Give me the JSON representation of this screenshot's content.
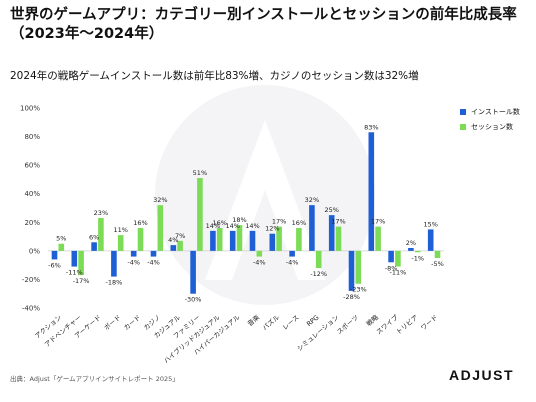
{
  "header": {
    "title": "世界のゲームアプリ：カテゴリー別インストールとセッションの前年比成長率（2023年〜2024年）",
    "subtitle": "2024年の戦略ゲームインストール数は前年比83%増、カジノのセッション数は32%増"
  },
  "footer": {
    "source": "出典：Adjust「ゲームアプリインサイトレポート 2025」",
    "logo_text": "ADJUST"
  },
  "colors": {
    "installs": "#1f5fd6",
    "sessions": "#7ddc56"
  },
  "chart_data": {
    "type": "bar",
    "title": "世界のゲームアプリ：カテゴリー別インストールとセッションの前年比成長率（2023年〜2024年）",
    "subtitle": "2024年の戦略ゲームインストール数は前年比83%増、カジノのセッション数は32%増",
    "categories": [
      "アクション",
      "アドベンチャー",
      "アーケード",
      "ボード",
      "カード",
      "カジノ",
      "カジュアル",
      "ファミリー",
      "ハイブリッドカジュアル",
      "ハイパーカジュアル",
      "音楽",
      "パズル",
      "レース",
      "RPG",
      "シミュレーション",
      "スポーツ",
      "戦略",
      "スワイプ",
      "トリビア",
      "ワード"
    ],
    "series": [
      {
        "name": "インストール数",
        "values": [
          -6,
          -11,
          6,
          -18,
          -4,
          -4,
          4,
          -30,
          14,
          14,
          14,
          12,
          -4,
          32,
          25,
          -28,
          83,
          -8,
          2,
          15
        ]
      },
      {
        "name": "セッション数",
        "values": [
          5,
          -17,
          23,
          11,
          16,
          32,
          7,
          51,
          16,
          18,
          -4,
          17,
          16,
          -12,
          17,
          -23,
          17,
          -11,
          -1,
          -5
        ]
      }
    ],
    "data_labels": {
      "installs": [
        "-6%",
        "-11%",
        "6%",
        "-18%",
        "-4%",
        "-4%",
        "4%",
        "-30%",
        "14%",
        "14%",
        "14%",
        "12%",
        "-4%",
        "32%",
        "25%",
        "-28%",
        "83%",
        "-8%",
        "2%",
        "15%"
      ],
      "sessions": [
        "5%",
        "-17%",
        "23%",
        "11%",
        "16%",
        "32%",
        "7%",
        "51%",
        "16%",
        "18%",
        "-4%",
        "17%",
        "16%",
        "-12%",
        "17%",
        "-23%",
        "17%",
        "-11%",
        "-1%",
        "-5%"
      ]
    },
    "ylim": [
      -40,
      100
    ],
    "yticks": [
      -40,
      -20,
      0,
      20,
      40,
      60,
      80,
      100
    ],
    "ytick_labels": [
      "-40%",
      "-20%",
      "0%",
      "20%",
      "40%",
      "60%",
      "80%",
      "100%"
    ],
    "xlabel": "",
    "ylabel": "",
    "grid": false,
    "legend": {
      "position": "top-right",
      "entries": [
        "インストール数",
        "セッション数"
      ]
    }
  }
}
